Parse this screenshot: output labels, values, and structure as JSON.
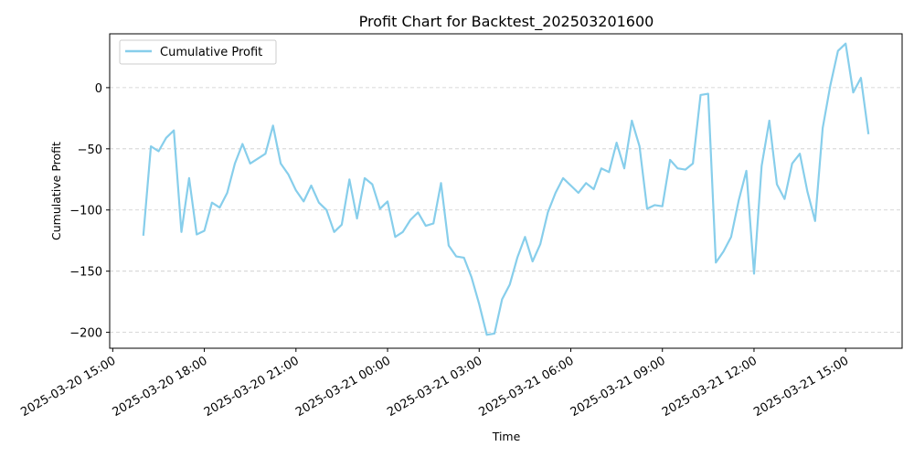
{
  "chart_data": {
    "type": "line",
    "title": "Profit Chart for Backtest_202503201600",
    "xlabel": "Time",
    "ylabel": "Cumulative Profit",
    "xlim": [
      "2025-03-20 14:54",
      "2025-03-21 16:51"
    ],
    "ylim": [
      -213,
      44
    ],
    "x_ticks": [
      "2025-03-20 15:00",
      "2025-03-20 18:00",
      "2025-03-20 21:00",
      "2025-03-21 00:00",
      "2025-03-21 03:00",
      "2025-03-21 06:00",
      "2025-03-21 09:00",
      "2025-03-21 12:00",
      "2025-03-21 15:00"
    ],
    "y_ticks": [
      0,
      -50,
      -100,
      -150,
      -200
    ],
    "grid": "y-dashed",
    "legend": "top-left",
    "series": [
      {
        "name": "Cumulative Profit",
        "color": "#87ceeb",
        "x": [
          "2025-03-20 16:00",
          "2025-03-20 16:15",
          "2025-03-20 16:30",
          "2025-03-20 16:45",
          "2025-03-20 17:00",
          "2025-03-20 17:15",
          "2025-03-20 17:30",
          "2025-03-20 17:45",
          "2025-03-20 18:00",
          "2025-03-20 18:15",
          "2025-03-20 18:30",
          "2025-03-20 18:45",
          "2025-03-20 19:00",
          "2025-03-20 19:15",
          "2025-03-20 19:30",
          "2025-03-20 20:00",
          "2025-03-20 20:15",
          "2025-03-20 20:30",
          "2025-03-20 20:45",
          "2025-03-20 21:00",
          "2025-03-20 21:15",
          "2025-03-20 21:30",
          "2025-03-20 21:45",
          "2025-03-20 22:00",
          "2025-03-20 22:15",
          "2025-03-20 22:30",
          "2025-03-20 22:45",
          "2025-03-20 23:00",
          "2025-03-20 23:15",
          "2025-03-20 23:30",
          "2025-03-20 23:45",
          "2025-03-21 00:00",
          "2025-03-21 00:15",
          "2025-03-21 00:30",
          "2025-03-21 00:45",
          "2025-03-21 01:00",
          "2025-03-21 01:15",
          "2025-03-21 01:30",
          "2025-03-21 01:45",
          "2025-03-21 02:00",
          "2025-03-21 02:15",
          "2025-03-21 02:30",
          "2025-03-21 02:45",
          "2025-03-21 03:00",
          "2025-03-21 03:15",
          "2025-03-21 03:30",
          "2025-03-21 03:45",
          "2025-03-21 04:00",
          "2025-03-21 04:15",
          "2025-03-21 04:30",
          "2025-03-21 04:45",
          "2025-03-21 05:00",
          "2025-03-21 05:15",
          "2025-03-21 05:30",
          "2025-03-21 05:45",
          "2025-03-21 06:00",
          "2025-03-21 06:15",
          "2025-03-21 06:30",
          "2025-03-21 06:45",
          "2025-03-21 07:00",
          "2025-03-21 07:15",
          "2025-03-21 07:30",
          "2025-03-21 07:45",
          "2025-03-21 08:00",
          "2025-03-21 08:15",
          "2025-03-21 08:30",
          "2025-03-21 08:45",
          "2025-03-21 09:00",
          "2025-03-21 09:15",
          "2025-03-21 09:30",
          "2025-03-21 09:45",
          "2025-03-21 10:00",
          "2025-03-21 10:15",
          "2025-03-21 10:30",
          "2025-03-21 10:45",
          "2025-03-21 11:00",
          "2025-03-21 11:15",
          "2025-03-21 11:30",
          "2025-03-21 11:45",
          "2025-03-21 12:00",
          "2025-03-21 12:15",
          "2025-03-21 12:30",
          "2025-03-21 12:45",
          "2025-03-21 13:00",
          "2025-03-21 13:15",
          "2025-03-21 13:30",
          "2025-03-21 13:45",
          "2025-03-21 14:00",
          "2025-03-21 14:15",
          "2025-03-21 14:30",
          "2025-03-21 14:45",
          "2025-03-21 15:00",
          "2025-03-21 15:15",
          "2025-03-21 15:30",
          "2025-03-21 15:45"
        ],
        "values": [
          -121,
          -48,
          -52,
          -41,
          -35,
          -118,
          -74,
          -120,
          -117,
          -94,
          -98,
          -86,
          -62,
          -46,
          -62,
          -54,
          -31,
          -62,
          -71,
          -84,
          -93,
          -80,
          -94,
          -100,
          -118,
          -112,
          -75,
          -107,
          -74,
          -79,
          -99,
          -93,
          -122,
          -118,
          -108,
          -102,
          -113,
          -111,
          -78,
          -129,
          -138,
          -139,
          -155,
          -177,
          -202,
          -201,
          -173,
          -161,
          -139,
          -122,
          -142,
          -128,
          -102,
          -86,
          -74,
          -80,
          -86,
          -78,
          -83,
          -66,
          -69,
          -45,
          -66,
          -27,
          -48,
          -99,
          -96,
          -97,
          -59,
          -66,
          -67,
          -62,
          -6,
          -5,
          -143,
          -134,
          -122,
          -92,
          -68,
          -152,
          -64,
          -27,
          -79,
          -91,
          -62,
          -54,
          -85,
          -109,
          -33,
          2,
          30,
          36,
          -4,
          8,
          -38
        ]
      }
    ]
  }
}
